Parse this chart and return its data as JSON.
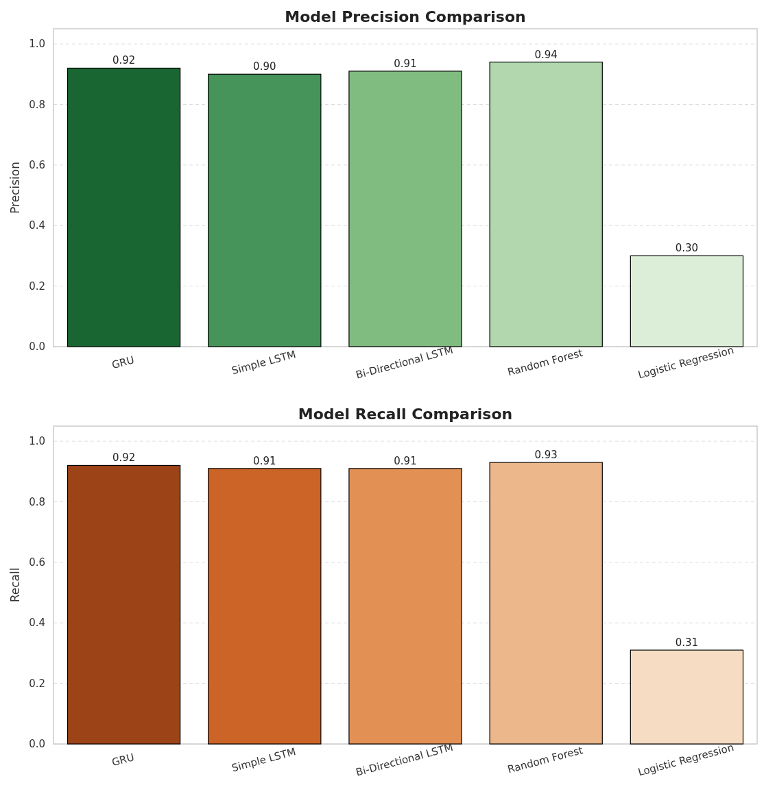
{
  "chart_data": [
    {
      "type": "bar",
      "title": "Model Precision Comparison",
      "ylabel": "Precision",
      "categories": [
        "GRU",
        "Simple LSTM",
        "Bi-Directional LSTM",
        "Random Forest",
        "Logistic Regression"
      ],
      "values": [
        0.92,
        0.9,
        0.91,
        0.94,
        0.3
      ],
      "value_labels": [
        "0.92",
        "0.90",
        "0.91",
        "0.94",
        "0.30"
      ],
      "colors": [
        "#1a6632",
        "#46945a",
        "#80bb80",
        "#b2d7ae",
        "#ddeed8"
      ],
      "ylim": [
        0,
        1.05
      ],
      "yticks": [
        {
          "value": 0,
          "label": "0.0"
        },
        {
          "value": 0.2,
          "label": "0.2"
        },
        {
          "value": 0.4,
          "label": "0.4"
        },
        {
          "value": 0.6,
          "label": "0.6"
        },
        {
          "value": 0.8,
          "label": "0.8"
        },
        {
          "value": 1,
          "label": "1.0"
        }
      ],
      "grid": "y"
    },
    {
      "type": "bar",
      "title": "Model Recall Comparison",
      "ylabel": "Recall",
      "categories": [
        "GRU",
        "Simple LSTM",
        "Bi-Directional LSTM",
        "Random Forest",
        "Logistic Regression"
      ],
      "values": [
        0.92,
        0.91,
        0.91,
        0.93,
        0.31
      ],
      "value_labels": [
        "0.92",
        "0.91",
        "0.91",
        "0.93",
        "0.31"
      ],
      "colors": [
        "#9d4318",
        "#cc6428",
        "#e39055",
        "#ecb78b",
        "#f5dcc2"
      ],
      "ylim": [
        0,
        1.05
      ],
      "yticks": [
        {
          "value": 0,
          "label": "0.0"
        },
        {
          "value": 0.2,
          "label": "0.2"
        },
        {
          "value": 0.4,
          "label": "0.4"
        },
        {
          "value": 0.6,
          "label": "0.6"
        },
        {
          "value": 0.8,
          "label": "0.8"
        },
        {
          "value": 1,
          "label": "1.0"
        }
      ],
      "grid": "y"
    }
  ]
}
